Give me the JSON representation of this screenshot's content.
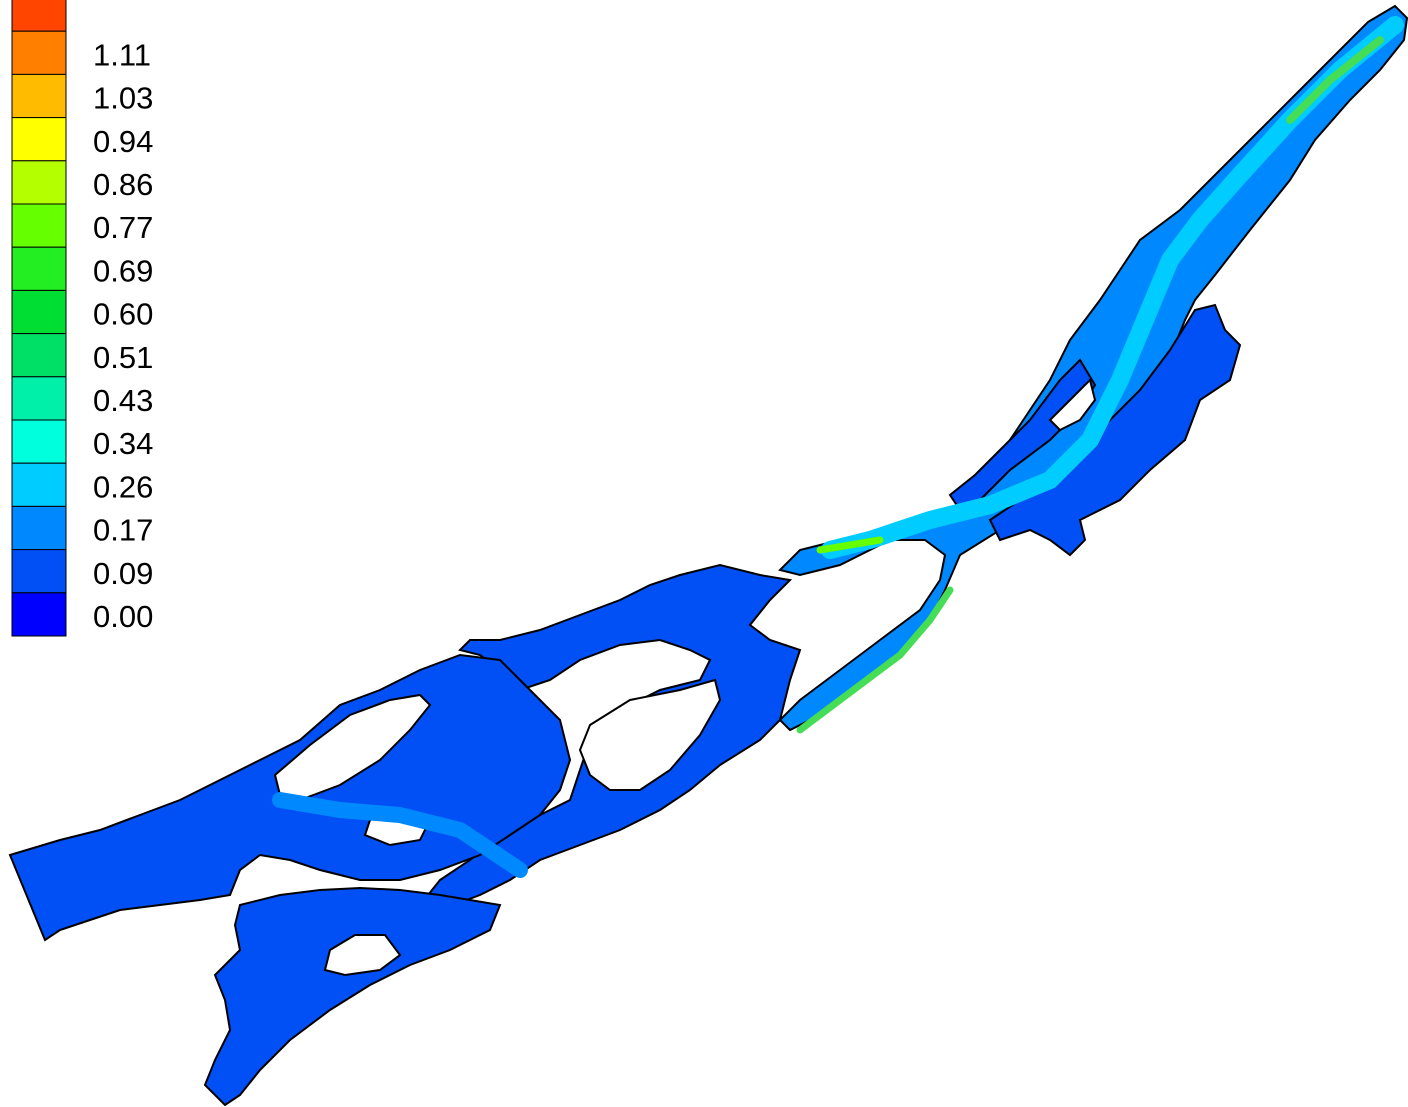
{
  "legend": {
    "levels": [
      {
        "label": "",
        "color": "#ff4500"
      },
      {
        "label": "1.11",
        "color": "#ff8000"
      },
      {
        "label": "1.03",
        "color": "#ffbb00"
      },
      {
        "label": "0.94",
        "color": "#ffff00"
      },
      {
        "label": "0.86",
        "color": "#b4ff00"
      },
      {
        "label": "0.77",
        "color": "#66ff00"
      },
      {
        "label": "0.69",
        "color": "#22ee22"
      },
      {
        "label": "0.60",
        "color": "#00dd33"
      },
      {
        "label": "0.51",
        "color": "#00e066"
      },
      {
        "label": "0.43",
        "color": "#00f0aa"
      },
      {
        "label": "0.34",
        "color": "#00ffdd"
      },
      {
        "label": "0.26",
        "color": "#00ccff"
      },
      {
        "label": "0.17",
        "color": "#0088ff"
      },
      {
        "label": "0.09",
        "color": "#0050f5"
      },
      {
        "label": "0.00",
        "color": "#0000ff"
      }
    ]
  },
  "map": {
    "outline_color": "#000000",
    "fill_low": "#0050f5",
    "fill_mid": "#0088ff",
    "fill_high": "#00ccff",
    "fill_peak": "#44dd55"
  }
}
